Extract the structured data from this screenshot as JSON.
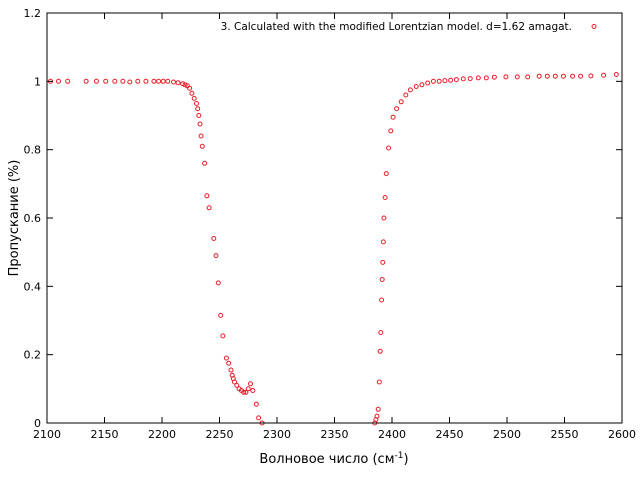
{
  "chart_data": {
    "type": "scatter",
    "title": "",
    "xlabel": "Волновое число (см",
    "xlabel_sup": "-1",
    "xlabel_suffix": ")",
    "ylabel": "Пропускание (%)",
    "xlim": [
      2100,
      2600
    ],
    "ylim": [
      0,
      1.2
    ],
    "x_ticks": [
      "2100",
      "2150",
      "2200",
      "2250",
      "2300",
      "2350",
      "2400",
      "2450",
      "2500",
      "2550",
      "2600"
    ],
    "y_ticks": [
      "0",
      "0.2",
      "0.4",
      "0.6",
      "0.8",
      "1",
      "1.2"
    ],
    "grid": false,
    "legend_position": "top-right",
    "series": [
      {
        "name": "3. Calculated with the modified Lorentzian model. d=1.62 amagat.",
        "color": "#e8202a",
        "marker": "open-circle",
        "x": [
          2103,
          2110,
          2118,
          2134,
          2143,
          2151,
          2159,
          2166,
          2172,
          2179,
          2186,
          2193,
          2197,
          2201,
          2205,
          2210,
          2214,
          2218,
          2220,
          2222,
          2224,
          2226,
          2228,
          2230,
          2231,
          2232,
          2233,
          2234,
          2235,
          2237,
          2239,
          2241,
          2245,
          2247,
          2249,
          2251,
          2253,
          2256,
          2258,
          2260,
          2261,
          2262,
          2263,
          2265,
          2267,
          2269,
          2271,
          2273,
          2275,
          2277,
          2279,
          2282,
          2284,
          2287,
          2385,
          2386,
          2387,
          2388,
          2389,
          2389.7,
          2390.3,
          2391,
          2391.5,
          2392,
          2392.5,
          2393,
          2394,
          2395,
          2397,
          2399,
          2401,
          2404,
          2408,
          2412,
          2416,
          2421,
          2426,
          2431,
          2436,
          2441,
          2446,
          2451,
          2456,
          2462,
          2468,
          2475,
          2482,
          2489,
          2499,
          2509,
          2518,
          2528,
          2535,
          2542,
          2549,
          2557,
          2564,
          2573,
          2584,
          2595
        ],
        "y": [
          1.0,
          1.0,
          1.0,
          1.0,
          1.0,
          1.0,
          1.0,
          1.0,
          0.998,
          1.0,
          1.0,
          1.0,
          1.0,
          1.0,
          1.0,
          0.998,
          0.996,
          0.993,
          0.99,
          0.987,
          0.98,
          0.965,
          0.95,
          0.935,
          0.92,
          0.9,
          0.875,
          0.84,
          0.81,
          0.76,
          0.665,
          0.63,
          0.54,
          0.49,
          0.41,
          0.315,
          0.255,
          0.19,
          0.175,
          0.155,
          0.14,
          0.13,
          0.12,
          0.11,
          0.1,
          0.095,
          0.09,
          0.09,
          0.1,
          0.115,
          0.095,
          0.055,
          0.015,
          0.0,
          0.0,
          0.01,
          0.02,
          0.04,
          0.12,
          0.21,
          0.265,
          0.36,
          0.42,
          0.47,
          0.53,
          0.6,
          0.66,
          0.73,
          0.805,
          0.855,
          0.895,
          0.92,
          0.94,
          0.96,
          0.975,
          0.985,
          0.99,
          0.995,
          1.0,
          1.0,
          1.002,
          1.003,
          1.005,
          1.007,
          1.008,
          1.01,
          1.01,
          1.012,
          1.013,
          1.013,
          1.013,
          1.015,
          1.015,
          1.015,
          1.015,
          1.015,
          1.015,
          1.016,
          1.018,
          1.02
        ]
      }
    ]
  }
}
